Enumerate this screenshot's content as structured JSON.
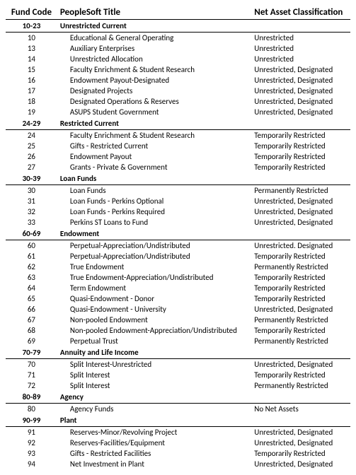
{
  "headers": {
    "code": "Fund Code",
    "title": "PeopleSoft Title",
    "classification": "Net Asset Classification"
  },
  "sections": [
    {
      "range": "10-23",
      "label": "Unrestricted Current",
      "rows": [
        {
          "code": "10",
          "title": "Educational & General Operating",
          "cls": "Unrestricted"
        },
        {
          "code": "13",
          "title": "Auxiliary Enterprises",
          "cls": "Unrestricted"
        },
        {
          "code": "14",
          "title": "Unrestricted Allocation",
          "cls": "Unrestricted"
        },
        {
          "code": "15",
          "title": "Faculty Enrichment & Student  Research",
          "cls": "Unrestricted, Designated"
        },
        {
          "code": "16",
          "title": "Endowment Payout-Designated",
          "cls": "Unrestricted, Designated"
        },
        {
          "code": "17",
          "title": "Designated Projects",
          "cls": "Unrestricted, Designated"
        },
        {
          "code": "18",
          "title": "Designated Operations & Reserves",
          "cls": "Unrestricted, Designated"
        },
        {
          "code": "19",
          "title": "ASUPS Student Government",
          "cls": "Unrestricted, Designated"
        }
      ]
    },
    {
      "range": "24-29",
      "label": "Restricted Current",
      "rows": [
        {
          "code": "24",
          "title": "Faculty Enrichment & Student  Research",
          "cls": "Temporarily Restricted"
        },
        {
          "code": "25",
          "title": "Gifts - Restricted Current",
          "cls": "Temporarily Restricted"
        },
        {
          "code": "26",
          "title": "Endowment Payout",
          "cls": "Temporarily Restricted"
        },
        {
          "code": "27",
          "title": "Grants - Private & Government",
          "cls": "Temporarily Restricted"
        }
      ]
    },
    {
      "range": "30-39",
      "label": "Loan Funds",
      "rows": [
        {
          "code": "30",
          "title": "Loan Funds",
          "cls": "Permanently Restricted"
        },
        {
          "code": "31",
          "title": "Loan Funds - Perkins Optional",
          "cls": "Unrestricted, Designated"
        },
        {
          "code": "32",
          "title": "Loan Funds - Perkins Required",
          "cls": "Unrestricted, Designated"
        },
        {
          "code": "33",
          "title": "Perkins ST Loans to Fund",
          "cls": "Unrestricted, Designated"
        }
      ]
    },
    {
      "range": "60-69",
      "label": "Endowment",
      "rows": [
        {
          "code": "60",
          "title": "Perpetual-Appreciation/Undistributed",
          "cls": "Unrestricted. Designated"
        },
        {
          "code": "61",
          "title": "Perpetual-Appreciation/Undistributed",
          "cls": "Temporarily Restricted"
        },
        {
          "code": "62",
          "title": "True Endowment",
          "cls": "Permanently Restricted"
        },
        {
          "code": "63",
          "title": "True Endowment-Appreciation/Undistributed",
          "cls": "Temporarily Restricted"
        },
        {
          "code": "64",
          "title": "Term Endowment",
          "cls": "Temporarily Restricted"
        },
        {
          "code": "65",
          "title": "Quasi-Endowment - Donor",
          "cls": "Temporarily Restricted"
        },
        {
          "code": "66",
          "title": "Quasi-Endowment - University",
          "cls": "Unrestricted, Designated"
        },
        {
          "code": "67",
          "title": "Non-pooled Endowment",
          "cls": "Permanently Restricted"
        },
        {
          "code": "68",
          "title": "Non-pooled Endowment-Appreciation/Undistributed",
          "cls": "Temporarily Restricted"
        },
        {
          "code": "69",
          "title": "Perpetual Trust",
          "cls": "Permanently Restricted"
        }
      ]
    },
    {
      "range": "70-79",
      "label": "Annuity and Life Income",
      "rows": [
        {
          "code": "70",
          "title": "Split Interest-Unrestricted",
          "cls": "Unrestricted, Designated"
        },
        {
          "code": "71",
          "title": "Split Interest",
          "cls": "Temporarily Restricted"
        },
        {
          "code": "72",
          "title": "Split Interest",
          "cls": "Permanently Restricted"
        }
      ]
    },
    {
      "range": "80-89",
      "label": "Agency",
      "rows": [
        {
          "code": "80",
          "title": "Agency Funds",
          "cls": "No Net Assets"
        }
      ]
    },
    {
      "range": "90-99",
      "label": "Plant",
      "rows": [
        {
          "code": "91",
          "title": "Reserves-Minor/Revolving Project",
          "cls": "Unrestricted, Designated"
        },
        {
          "code": "92",
          "title": "Reserves-Facilities/Equipment",
          "cls": "Unrestricted, Designated"
        },
        {
          "code": "93",
          "title": "Gifts - Restricted Facilities",
          "cls": "Temporarily Restricted"
        },
        {
          "code": "94",
          "title": "Net Investment in Plant",
          "cls": "Unrestricted, Designated"
        }
      ]
    }
  ]
}
